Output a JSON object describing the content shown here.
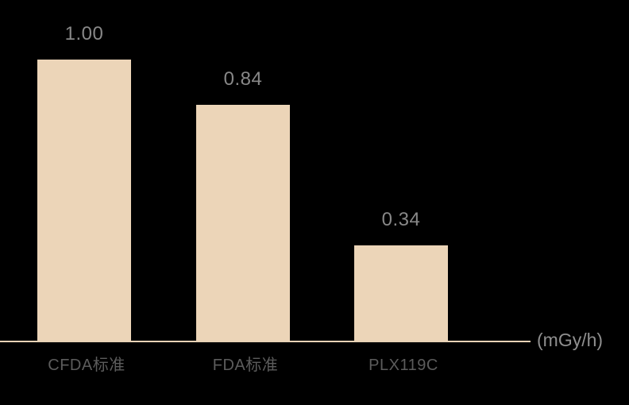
{
  "chart_data": {
    "type": "bar",
    "title": "",
    "categories": [
      "CFDA标准",
      "FDA标准",
      "PLX119C"
    ],
    "values": [
      1.0,
      0.84,
      0.34
    ],
    "value_labels": [
      "1.00",
      "0.84",
      "0.34"
    ],
    "unit_label": "(mGy/h)",
    "xlabel": "",
    "ylabel": "",
    "ylim": [
      0,
      1.06
    ],
    "grid": false,
    "legend_position": "none",
    "colors": {
      "background": "#000000",
      "bar_fill": "#ecd5b8",
      "axis_line": "#e8d2b5",
      "value_label_text": "#888888",
      "category_label_text": "#5c5c5c",
      "unit_label_text": "#8f8f8f"
    }
  }
}
